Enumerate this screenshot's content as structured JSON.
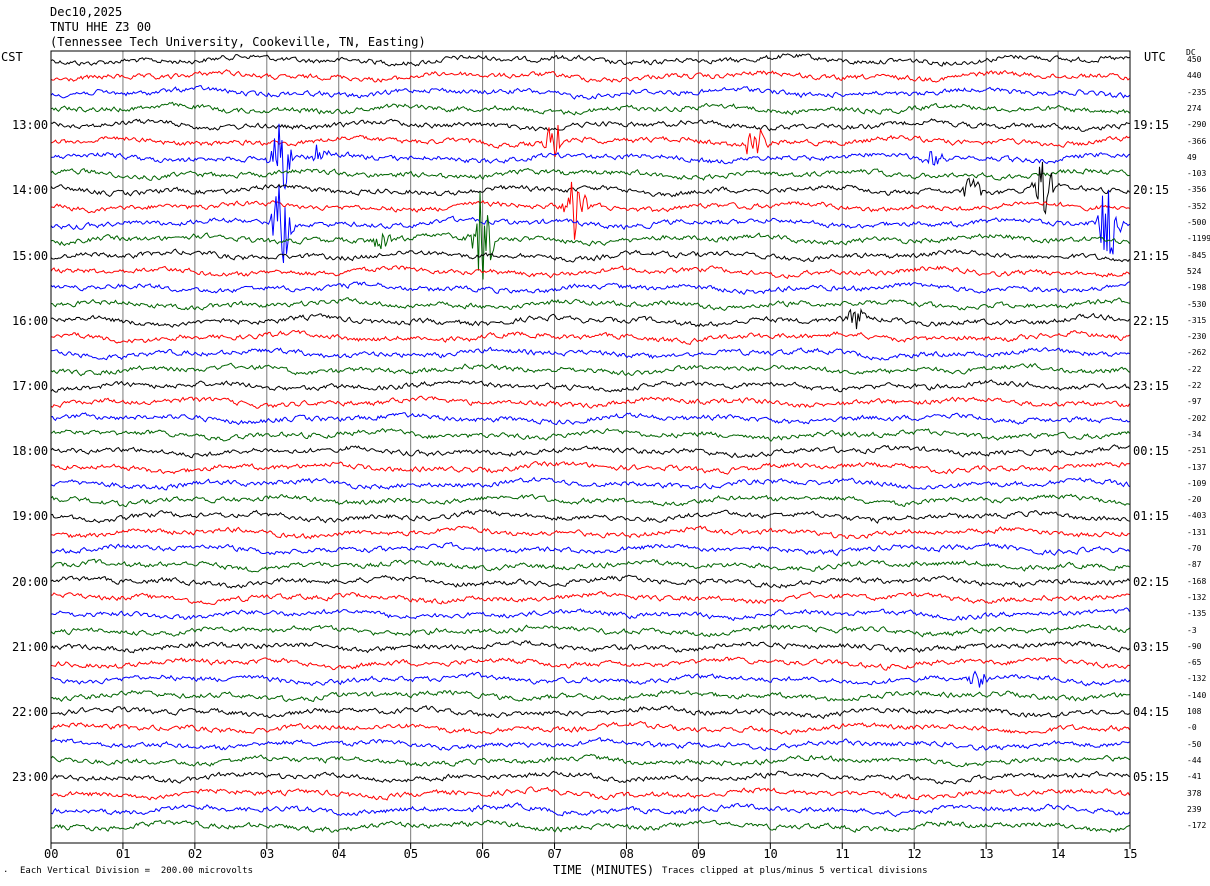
{
  "header": {
    "date": "Dec10,2025",
    "station": "TNTU HHE Z3 00",
    "location": "(Tennessee Tech University, Cookeville, TN, Easting)"
  },
  "left_tz": "CST",
  "right_tz": "UTC",
  "dc_label": "DC",
  "footer": {
    "scale": "Each Vertical Division =  200.00 microvolts",
    "clip": "Traces clipped at plus/minus 5 vertical divisions",
    "mark": "."
  },
  "chart_data": {
    "type": "line",
    "title": "",
    "xlabel": "TIME (MINUTES)",
    "ylabel": "",
    "x_ticks": [
      "00",
      "01",
      "02",
      "03",
      "04",
      "05",
      "06",
      "07",
      "08",
      "09",
      "10",
      "11",
      "12",
      "13",
      "14",
      "15"
    ],
    "xlim": [
      0,
      15
    ],
    "grid": "vertical",
    "trace_colors": [
      "#000000",
      "#ff0000",
      "#0000ff",
      "#006400"
    ],
    "left_hour_labels": [
      {
        "label": "13:00",
        "row": 4
      },
      {
        "label": "14:00",
        "row": 8
      },
      {
        "label": "15:00",
        "row": 12
      },
      {
        "label": "16:00",
        "row": 16
      },
      {
        "label": "17:00",
        "row": 20
      },
      {
        "label": "18:00",
        "row": 24
      },
      {
        "label": "19:00",
        "row": 28
      },
      {
        "label": "20:00",
        "row": 32
      },
      {
        "label": "21:00",
        "row": 36
      },
      {
        "label": "22:00",
        "row": 40
      },
      {
        "label": "23:00",
        "row": 44
      }
    ],
    "right_hour_labels": [
      {
        "label": "19:15",
        "row": 4
      },
      {
        "label": "20:15",
        "row": 8
      },
      {
        "label": "21:15",
        "row": 12
      },
      {
        "label": "22:15",
        "row": 16
      },
      {
        "label": "23:15",
        "row": 20
      },
      {
        "label": "00:15",
        "row": 24
      },
      {
        "label": "01:15",
        "row": 28
      },
      {
        "label": "02:15",
        "row": 32
      },
      {
        "label": "03:15",
        "row": 36
      },
      {
        "label": "04:15",
        "row": 40
      },
      {
        "label": "05:15",
        "row": 44
      }
    ],
    "dc_offsets": [
      "450",
      "440",
      "-235",
      "274",
      "-290",
      "-366",
      "49",
      "-103",
      "-356",
      "-352",
      "-500",
      "-1199",
      "-845",
      "524",
      "-198",
      "-530",
      "-315",
      "-230",
      "-262",
      "-22",
      "-22",
      "-97",
      "-202",
      "-34",
      "-251",
      "-137",
      "-109",
      "-20",
      "-403",
      "-131",
      "-70",
      "-87",
      "-168",
      "-132",
      "-135",
      "-3",
      "-90",
      "-65",
      "-132",
      "-140",
      "108",
      "-0",
      "-50",
      "-44",
      "-41",
      "378",
      "239",
      "-172"
    ],
    "events": [
      {
        "row": 5,
        "minute": 7.0,
        "amp": 22
      },
      {
        "row": 5,
        "minute": 9.8,
        "amp": 22
      },
      {
        "row": 6,
        "minute": 3.2,
        "amp": 40
      },
      {
        "row": 6,
        "minute": 3.7,
        "amp": 10
      },
      {
        "row": 6,
        "minute": 12.3,
        "amp": 12
      },
      {
        "row": 8,
        "minute": 13.8,
        "amp": 30
      },
      {
        "row": 8,
        "minute": 12.8,
        "amp": 16
      },
      {
        "row": 9,
        "minute": 7.3,
        "amp": 36
      },
      {
        "row": 10,
        "minute": 3.2,
        "amp": 45
      },
      {
        "row": 10,
        "minute": 14.7,
        "amp": 45
      },
      {
        "row": 11,
        "minute": 6.0,
        "amp": 50
      },
      {
        "row": 11,
        "minute": 4.6,
        "amp": 12
      },
      {
        "row": 16,
        "minute": 11.2,
        "amp": 16
      },
      {
        "row": 38,
        "minute": 12.9,
        "amp": 8
      }
    ]
  }
}
